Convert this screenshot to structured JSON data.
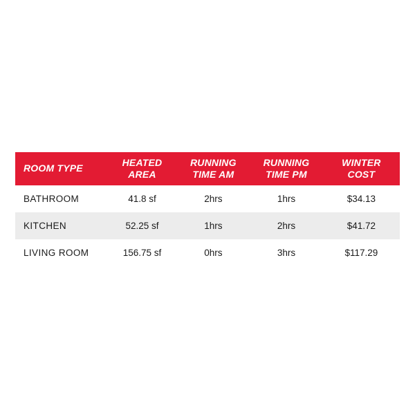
{
  "colors": {
    "header_bg": "#e31b33",
    "header_fg": "#ffffff",
    "body_fg": "#1a1a1a",
    "row_alt_bg": "#ececec",
    "page_bg": "#ffffff"
  },
  "table": {
    "type": "table",
    "columns": [
      {
        "label_line1": "ROOM TYPE",
        "label_line2": "",
        "align": "left",
        "width_pct": 24
      },
      {
        "label_line1": "HEATED",
        "label_line2": "AREA",
        "align": "center",
        "width_pct": 18
      },
      {
        "label_line1": "RUNNING",
        "label_line2": "TIME AM",
        "align": "center",
        "width_pct": 19
      },
      {
        "label_line1": "RUNNING",
        "label_line2": "TIME PM",
        "align": "center",
        "width_pct": 19
      },
      {
        "label_line1": "WINTER",
        "label_line2": "COST",
        "align": "center",
        "width_pct": 20
      }
    ],
    "rows": [
      {
        "room": "BATHROOM",
        "area": "41.8 sf",
        "am": "2hrs",
        "pm": "1hrs",
        "cost": "$34.13"
      },
      {
        "room": "KITCHEN",
        "area": "52.25 sf",
        "am": "1hrs",
        "pm": "2hrs",
        "cost": "$41.72"
      },
      {
        "room": "LIVING ROOM",
        "area": "156.75 sf",
        "am": "0hrs",
        "pm": "3hrs",
        "cost": "$117.29"
      }
    ],
    "header_fontsize_pt": 11,
    "body_fontsize_pt": 10,
    "header_font_style": "italic",
    "header_font_weight": 800
  }
}
